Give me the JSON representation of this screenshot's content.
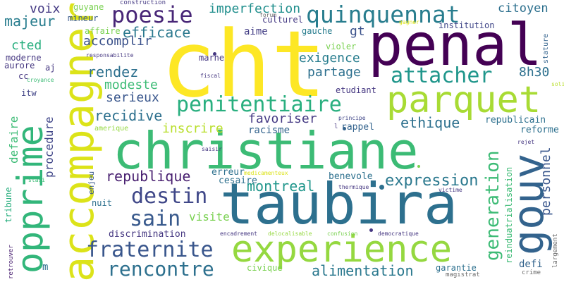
{
  "words": [
    {
      "text": "cht",
      "color": "#fde725"
    },
    {
      "text": "penal",
      "color": "#440154"
    },
    {
      "text": "christiane",
      "color": "#3cbb75"
    },
    {
      "text": "taubira",
      "color": "#2d708e"
    },
    {
      "text": "experience",
      "color": "#95d840"
    },
    {
      "text": "accompagner",
      "color": "#dce319"
    },
    {
      "text": "opprime",
      "color": "#32b67a"
    },
    {
      "text": "parquet",
      "color": "#a8db34"
    },
    {
      "text": "gouv",
      "color": "#33638d"
    },
    {
      "text": "quinquennat",
      "color": "#287d8e"
    },
    {
      "text": "poesie",
      "color": "#482677"
    },
    {
      "text": "penitentiaire",
      "color": "#29af7f"
    },
    {
      "text": "attacher",
      "color": "#1f968b"
    },
    {
      "text": "fraternite",
      "color": "#39568c"
    },
    {
      "text": "rencontre",
      "color": "#2d708e"
    },
    {
      "text": "destin",
      "color": "#3f4788"
    },
    {
      "text": "sain",
      "color": "#38598c"
    },
    {
      "text": "generation",
      "color": "#3cbb75"
    },
    {
      "text": "expression",
      "color": "#2a788e"
    },
    {
      "text": "alimentation",
      "color": "#2a788e"
    },
    {
      "text": "republique",
      "color": "#481f70"
    },
    {
      "text": "montreal",
      "color": "#1f968b"
    },
    {
      "text": "efficace",
      "color": "#2a788e"
    },
    {
      "text": "imperfection",
      "color": "#218f8d"
    },
    {
      "text": "citoyen",
      "color": "#2d708e"
    },
    {
      "text": "majeur",
      "color": "#287d8e"
    },
    {
      "text": "voix",
      "color": "#443983"
    },
    {
      "text": "accomplir",
      "color": "#3b528b"
    },
    {
      "text": "rendez",
      "color": "#2d708e"
    },
    {
      "text": "modeste",
      "color": "#3cbb75"
    },
    {
      "text": "serieux",
      "color": "#39568c"
    },
    {
      "text": "recidive",
      "color": "#2d708e"
    },
    {
      "text": "inscrire",
      "color": "#b8de29"
    },
    {
      "text": "favoriser",
      "color": "#443983"
    },
    {
      "text": "racisme",
      "color": "#33638d"
    },
    {
      "text": "exigence",
      "color": "#287d8e"
    },
    {
      "text": "partage",
      "color": "#2d708e"
    },
    {
      "text": "ethique",
      "color": "#2d708e"
    },
    {
      "text": "8h30",
      "color": "#2d708e"
    },
    {
      "text": "personnel",
      "color": "#39568c"
    },
    {
      "text": "procedure",
      "color": "#404688"
    },
    {
      "text": "defaire",
      "color": "#3cbb75"
    },
    {
      "text": "cted",
      "color": "#29af7f"
    },
    {
      "text": "aime",
      "color": "#433e85"
    },
    {
      "text": "gt",
      "color": "#3b528b"
    },
    {
      "text": "visite",
      "color": "#7ad151"
    },
    {
      "text": "reforme",
      "color": "#2d708e"
    },
    {
      "text": "republicain",
      "color": "#2d708e"
    },
    {
      "text": "rappel",
      "color": "#33638d"
    },
    {
      "text": "benevole",
      "color": "#2d708e"
    },
    {
      "text": "cesaire",
      "color": "#2d708e"
    },
    {
      "text": "erreur",
      "color": "#2d708e"
    },
    {
      "text": "discrimination",
      "color": "#453781"
    },
    {
      "text": "nuit",
      "color": "#2d708e"
    },
    {
      "text": "defi",
      "color": "#33638d"
    },
    {
      "text": "garantie",
      "color": "#2d708e"
    },
    {
      "text": "civique",
      "color": "#7ad151"
    },
    {
      "text": "magistrat",
      "color": "#6a6a6a"
    },
    {
      "text": "crime",
      "color": "#6a6a6a"
    },
    {
      "text": "largement",
      "color": "#6a6a6a"
    },
    {
      "text": "reinduatrialisation",
      "color": "#3cbb75"
    },
    {
      "text": "enjeu",
      "color": "#38598c"
    },
    {
      "text": "tribune",
      "color": "#29af7f"
    },
    {
      "text": "retrouver",
      "color": "#481f70"
    },
    {
      "text": "itw",
      "color": "#414487"
    },
    {
      "text": "cc",
      "color": "#453781"
    },
    {
      "text": "aj",
      "color": "#453781"
    },
    {
      "text": "m",
      "color": "#2d708e"
    },
    {
      "text": "moderne",
      "color": "#453781"
    },
    {
      "text": "aurore",
      "color": "#453781"
    },
    {
      "text": "responsabilite",
      "color": "#453781"
    },
    {
      "text": "affaire",
      "color": "#7ad151"
    },
    {
      "text": "mineur",
      "color": "#38598c"
    },
    {
      "text": "guyane",
      "color": "#7ad151"
    },
    {
      "text": "construction",
      "color": "#443983"
    },
    {
      "text": "forum",
      "color": "#6a6a6a"
    },
    {
      "text": "culturel",
      "color": "#443983"
    },
    {
      "text": "gauche",
      "color": "#287d8e"
    },
    {
      "text": "institution",
      "color": "#404688"
    },
    {
      "text": "violer",
      "color": "#7ad151"
    },
    {
      "text": "marne",
      "color": "#453781"
    },
    {
      "text": "fiscal",
      "color": "#453781"
    },
    {
      "text": "croyance",
      "color": "#3cbb75"
    },
    {
      "text": "etudiant",
      "color": "#453781"
    },
    {
      "text": "principe",
      "color": "#404688"
    },
    {
      "text": "saisir",
      "color": "#453781"
    },
    {
      "text": "medicamenteux",
      "color": "#dce319"
    },
    {
      "text": "thermique",
      "color": "#453781"
    },
    {
      "text": "victime",
      "color": "#453781"
    },
    {
      "text": "stasi",
      "color": "#3cbb75"
    },
    {
      "text": "encadrement",
      "color": "#453781"
    },
    {
      "text": "delocalisable",
      "color": "#95d840"
    },
    {
      "text": "confusion",
      "color": "#7ad151"
    },
    {
      "text": "democratique",
      "color": "#453781"
    },
    {
      "text": "rejet",
      "color": "#453781"
    },
    {
      "text": "stature",
      "color": "#33638d"
    },
    {
      "text": "solide",
      "color": "#b8de29"
    },
    {
      "text": "amerique",
      "color": "#95d840"
    },
    {
      "text": "gagner",
      "color": "#dce319"
    },
    {
      "text": "l",
      "color": "#453781"
    }
  ]
}
